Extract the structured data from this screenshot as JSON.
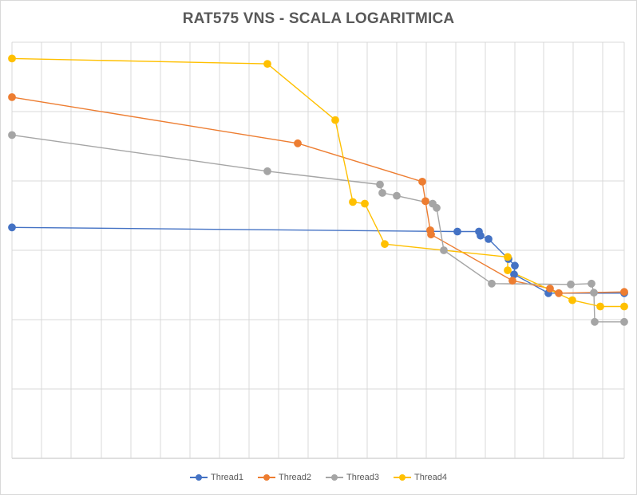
{
  "chart_data": {
    "type": "line",
    "title": "RAT575 VNS - SCALA LOGARITMICA",
    "xlabel": "",
    "ylabel": "",
    "scale": "log",
    "grid": true,
    "legend_position": "bottom",
    "series": [
      {
        "name": "Thread1",
        "color": "#4472C4",
        "points": [
          [
            0,
            0.555
          ],
          [
            558,
            0.545
          ],
          [
            585,
            0.545
          ],
          [
            587,
            0.535
          ],
          [
            597,
            0.527
          ],
          [
            622,
            0.479
          ],
          [
            630,
            0.463
          ],
          [
            629,
            0.442
          ],
          [
            672,
            0.397
          ],
          [
            767,
            0.397
          ]
        ]
      },
      {
        "name": "Thread2",
        "color": "#ED7D31",
        "points": [
          [
            0,
            0.868
          ],
          [
            358,
            0.757
          ],
          [
            514,
            0.665
          ],
          [
            518,
            0.618
          ],
          [
            524,
            0.548
          ],
          [
            525,
            0.538
          ],
          [
            627,
            0.427
          ],
          [
            674,
            0.408
          ],
          [
            685,
            0.397
          ],
          [
            767,
            0.4
          ]
        ]
      },
      {
        "name": "Thread3",
        "color": "#A5A5A5",
        "points": [
          [
            0,
            0.777
          ],
          [
            320,
            0.69
          ],
          [
            461,
            0.658
          ],
          [
            464,
            0.638
          ],
          [
            482,
            0.631
          ],
          [
            527,
            0.612
          ],
          [
            532,
            0.602
          ],
          [
            541,
            0.5
          ],
          [
            601,
            0.42
          ],
          [
            700,
            0.418
          ],
          [
            726,
            0.42
          ],
          [
            729,
            0.398
          ],
          [
            730,
            0.328
          ],
          [
            767,
            0.328
          ]
        ]
      },
      {
        "name": "Thread4",
        "color": "#FFC000",
        "points": [
          [
            0,
            0.961
          ],
          [
            320,
            0.948
          ],
          [
            405,
            0.813
          ],
          [
            427,
            0.616
          ],
          [
            442,
            0.612
          ],
          [
            467,
            0.515
          ],
          [
            621,
            0.484
          ],
          [
            621,
            0.452
          ],
          [
            702,
            0.38
          ],
          [
            737,
            0.365
          ],
          [
            767,
            0.365
          ]
        ]
      }
    ]
  }
}
